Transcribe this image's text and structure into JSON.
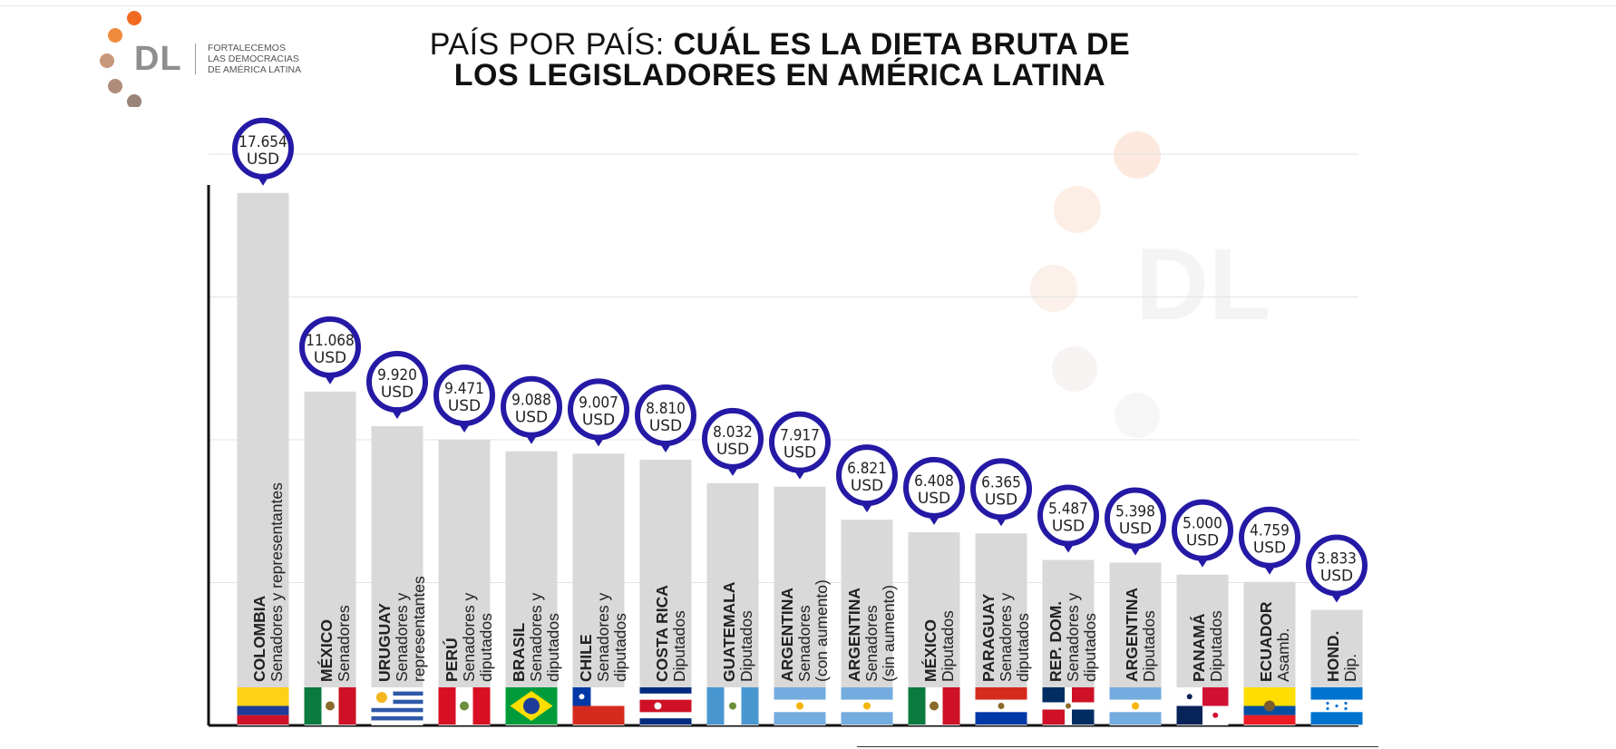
{
  "header": {
    "title_regular": "PAÍS POR PAÍS: ",
    "title_bold": "CUÁL ES LA DIETA BRUTA DE",
    "title_line2": "LOS LEGISLADORES EN AMÉRICA LATINA"
  },
  "logo": {
    "letters": "DL",
    "tagline": [
      "FORTALECEMOS",
      "LAS DEMOCRACIAS",
      "DE AMÉRICA LATINA"
    ],
    "dot_colors": [
      "#f26a21",
      "#f08a3c",
      "#c9977a",
      "#b08c7a",
      "#9a8478"
    ]
  },
  "watermark": {
    "letters": "DL"
  },
  "colors": {
    "bar": "#d9d9d9",
    "marker": "#241aa5",
    "marker_text": "#222222",
    "label_text": "#222222",
    "axis": "#111111",
    "grid": "#e3e3e3"
  },
  "chart_data": {
    "type": "bar",
    "title": "PAÍS POR PAÍS: CUÁL ES LA DIETA BRUTA DE LOS LEGISLADORES EN AMÉRICA LATINA",
    "unit": "USD",
    "ylim": [
      0,
      19000
    ],
    "grid": true,
    "categories": [
      {
        "country": "COLOMBIA",
        "chamber": [
          "Senadores y representantes"
        ],
        "value": 17654,
        "value_label": "17.654",
        "flag": "colombia"
      },
      {
        "country": "MÉXICO",
        "chamber": [
          "Senadores"
        ],
        "value": 11068,
        "value_label": "11.068",
        "flag": "mexico"
      },
      {
        "country": "URUGUAY",
        "chamber": [
          "Senadores y",
          "representantes"
        ],
        "value": 9920,
        "value_label": "9.920",
        "flag": "uruguay"
      },
      {
        "country": "PERÚ",
        "chamber": [
          "Senadores y",
          "diputados"
        ],
        "value": 9471,
        "value_label": "9.471",
        "flag": "peru"
      },
      {
        "country": "BRASIL",
        "chamber": [
          "Senadores y",
          "diputados"
        ],
        "value": 9088,
        "value_label": "9.088",
        "flag": "brasil"
      },
      {
        "country": "CHILE",
        "chamber": [
          "Senadores y",
          "diputados"
        ],
        "value": 9007,
        "value_label": "9.007",
        "flag": "chile"
      },
      {
        "country": "COSTA RICA",
        "chamber": [
          "Diputados"
        ],
        "value": 8810,
        "value_label": "8.810",
        "flag": "costarica"
      },
      {
        "country": "GUATEMALA",
        "chamber": [
          "Diputados"
        ],
        "value": 8032,
        "value_label": "8.032",
        "flag": "guatemala"
      },
      {
        "country": "ARGENTINA",
        "chamber": [
          "Senadores",
          "(con aumento)"
        ],
        "value": 7917,
        "value_label": "7.917",
        "flag": "argentina"
      },
      {
        "country": "ARGENTINA",
        "chamber": [
          "Senadores",
          "(sin aumento)"
        ],
        "value": 6821,
        "value_label": "6.821",
        "flag": "argentina"
      },
      {
        "country": "MÉXICO",
        "chamber": [
          "Diputados"
        ],
        "value": 6408,
        "value_label": "6.408",
        "flag": "mexico"
      },
      {
        "country": "PARAGUAY",
        "chamber": [
          "Senadores y",
          "diputados"
        ],
        "value": 6365,
        "value_label": "6.365",
        "flag": "paraguay"
      },
      {
        "country": "REP. DOM.",
        "chamber": [
          "Senadores y",
          "diputados"
        ],
        "value": 5487,
        "value_label": "5.487",
        "flag": "repdom"
      },
      {
        "country": "ARGENTINA",
        "chamber": [
          "Diputados"
        ],
        "value": 5398,
        "value_label": "5.398",
        "flag": "argentina"
      },
      {
        "country": "PANAMÁ",
        "chamber": [
          "Diputados"
        ],
        "value": 5000,
        "value_label": "5.000",
        "flag": "panama"
      },
      {
        "country": "ECUADOR",
        "chamber": [
          "Asamb."
        ],
        "value": 4759,
        "value_label": "4.759",
        "flag": "ecuador"
      },
      {
        "country": "HOND.",
        "chamber": [
          "Dip."
        ],
        "value": 3833,
        "value_label": "3.833",
        "flag": "honduras"
      }
    ]
  }
}
